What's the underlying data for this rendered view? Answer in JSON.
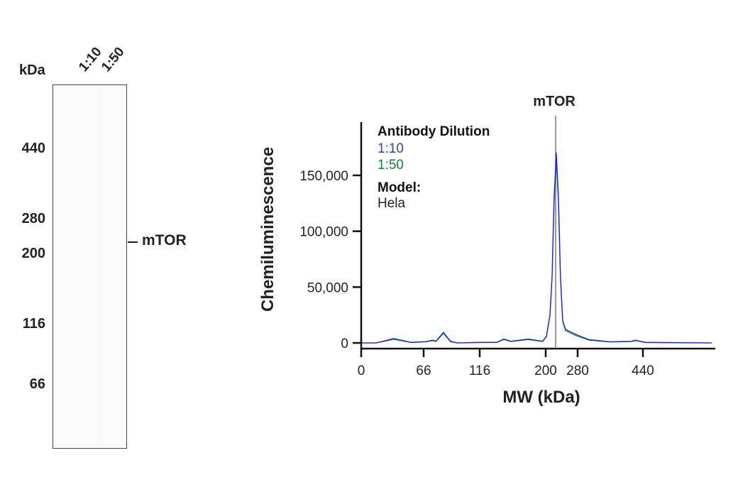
{
  "gel": {
    "unit_label": "kDa",
    "lanes": [
      "1:10",
      "1:50"
    ],
    "ladder_ticks": [
      "440",
      "280",
      "200",
      "116",
      "66"
    ],
    "band_label": "mTOR"
  },
  "chart_data": {
    "type": "line",
    "title": "",
    "xlabel": "MW (kDa)",
    "ylabel": "Chemiluminescence",
    "x_ticks": [
      0,
      66,
      116,
      200,
      280,
      440
    ],
    "y_ticks": [
      0,
      50000,
      100000,
      150000
    ],
    "y_tick_labels": [
      "0",
      "50,000",
      "100,000",
      "150,000"
    ],
    "x_tick_labels": [
      "0",
      "66",
      "116",
      "200",
      "280",
      "440"
    ],
    "ylim": [
      0,
      200000
    ],
    "annotation": {
      "label": "mTOR",
      "x": 225
    },
    "legend": {
      "title": "Antibody Dilution",
      "model_title": "Model:",
      "model_value": "Hela",
      "placement": "top-left"
    },
    "series": [
      {
        "name": "1:10",
        "color": "#1a1aff",
        "x": [
          0,
          16,
          34.5,
          53,
          68,
          74,
          77,
          83.7,
          90,
          96,
          116,
          137.7,
          146.8,
          155.7,
          178,
          196,
          201.8,
          210.7,
          216,
          221,
          226.7,
          232,
          237,
          242.7,
          249.8,
          276,
          307.8,
          360,
          412,
          421,
          447,
          609
        ],
        "y": [
          0,
          0,
          4000,
          500,
          1200,
          2500,
          1500,
          9500,
          1500,
          0,
          500,
          500,
          3500,
          1500,
          3500,
          1500,
          6000,
          25000,
          60000,
          130000,
          170000,
          130000,
          60000,
          20000,
          12000,
          7500,
          3000,
          1000,
          1500,
          2500,
          500,
          0
        ]
      },
      {
        "name": "1:50",
        "color": "#119944",
        "x": [
          0,
          16,
          34.5,
          53,
          68,
          74,
          77,
          83.7,
          90,
          96,
          116,
          137.7,
          146.8,
          155.7,
          178,
          196,
          201.8,
          210.7,
          216,
          221,
          226.7,
          232,
          237,
          242.7,
          249.8,
          276,
          307.8,
          360,
          412,
          421,
          447,
          609
        ],
        "y": [
          0,
          0,
          3200,
          300,
          1000,
          2000,
          1200,
          8500,
          1000,
          0,
          300,
          400,
          3000,
          1200,
          3000,
          1200,
          5500,
          24000,
          58000,
          125000,
          163000,
          125000,
          58000,
          19000,
          11000,
          6500,
          2500,
          800,
          1200,
          2000,
          300,
          0
        ]
      }
    ]
  }
}
